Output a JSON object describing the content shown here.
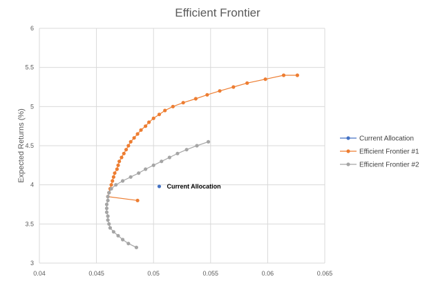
{
  "chart_data": {
    "type": "scatter",
    "title": "Efficient Frontier",
    "xlabel": "",
    "ylabel": "Expected Returns (%)",
    "xlim": [
      0.04,
      0.065
    ],
    "ylim": [
      3,
      6
    ],
    "x_ticks": [
      "0.04",
      "0.045",
      "0.05",
      "0.055",
      "0.06",
      "0.065"
    ],
    "y_ticks": [
      "3",
      "3.5",
      "4",
      "4.5",
      "5",
      "5.5",
      "6"
    ],
    "grid": true,
    "legend": "right",
    "series": [
      {
        "name": "Current Allocation",
        "color": "#4472C4",
        "points": [
          [
            0.0505,
            3.98
          ]
        ]
      },
      {
        "name": "Efficient Frontier #1",
        "color": "#ED7D31",
        "points": [
          [
            0.0486,
            3.8
          ],
          [
            0.046,
            3.85
          ],
          [
            0.0461,
            3.9
          ],
          [
            0.0462,
            3.95
          ],
          [
            0.0463,
            4.0
          ],
          [
            0.0464,
            4.05
          ],
          [
            0.0465,
            4.1
          ],
          [
            0.0466,
            4.15
          ],
          [
            0.0468,
            4.2
          ],
          [
            0.0469,
            4.25
          ],
          [
            0.047,
            4.3
          ],
          [
            0.0472,
            4.35
          ],
          [
            0.0474,
            4.4
          ],
          [
            0.0476,
            4.45
          ],
          [
            0.0478,
            4.5
          ],
          [
            0.048,
            4.55
          ],
          [
            0.0483,
            4.6
          ],
          [
            0.0486,
            4.65
          ],
          [
            0.0489,
            4.7
          ],
          [
            0.0493,
            4.75
          ],
          [
            0.0496,
            4.8
          ],
          [
            0.05,
            4.85
          ],
          [
            0.0505,
            4.9
          ],
          [
            0.051,
            4.95
          ],
          [
            0.0517,
            5.0
          ],
          [
            0.0526,
            5.05
          ],
          [
            0.0537,
            5.1
          ],
          [
            0.0547,
            5.15
          ],
          [
            0.0558,
            5.2
          ],
          [
            0.057,
            5.25
          ],
          [
            0.0582,
            5.3
          ],
          [
            0.0598,
            5.35
          ],
          [
            0.0614,
            5.4
          ],
          [
            0.0626,
            5.4
          ]
        ]
      },
      {
        "name": "Efficient Frontier #2",
        "color": "#A5A5A5",
        "points": [
          [
            0.0485,
            3.2
          ],
          [
            0.0478,
            3.25
          ],
          [
            0.0473,
            3.3
          ],
          [
            0.0469,
            3.35
          ],
          [
            0.0465,
            3.4
          ],
          [
            0.0462,
            3.45
          ],
          [
            0.0461,
            3.5
          ],
          [
            0.046,
            3.55
          ],
          [
            0.046,
            3.6
          ],
          [
            0.0459,
            3.65
          ],
          [
            0.0459,
            3.7
          ],
          [
            0.0459,
            3.75
          ],
          [
            0.046,
            3.8
          ],
          [
            0.046,
            3.85
          ],
          [
            0.0461,
            3.9
          ],
          [
            0.0463,
            3.95
          ],
          [
            0.0467,
            4.0
          ],
          [
            0.0473,
            4.05
          ],
          [
            0.048,
            4.1
          ],
          [
            0.0487,
            4.15
          ],
          [
            0.0493,
            4.2
          ],
          [
            0.05,
            4.25
          ],
          [
            0.0507,
            4.3
          ],
          [
            0.0514,
            4.35
          ],
          [
            0.0521,
            4.4
          ],
          [
            0.0529,
            4.45
          ],
          [
            0.0538,
            4.5
          ],
          [
            0.0548,
            4.55
          ]
        ]
      }
    ],
    "annotations": [
      {
        "text": "Current Allocation",
        "x": 0.0505,
        "y": 3.98
      }
    ]
  }
}
